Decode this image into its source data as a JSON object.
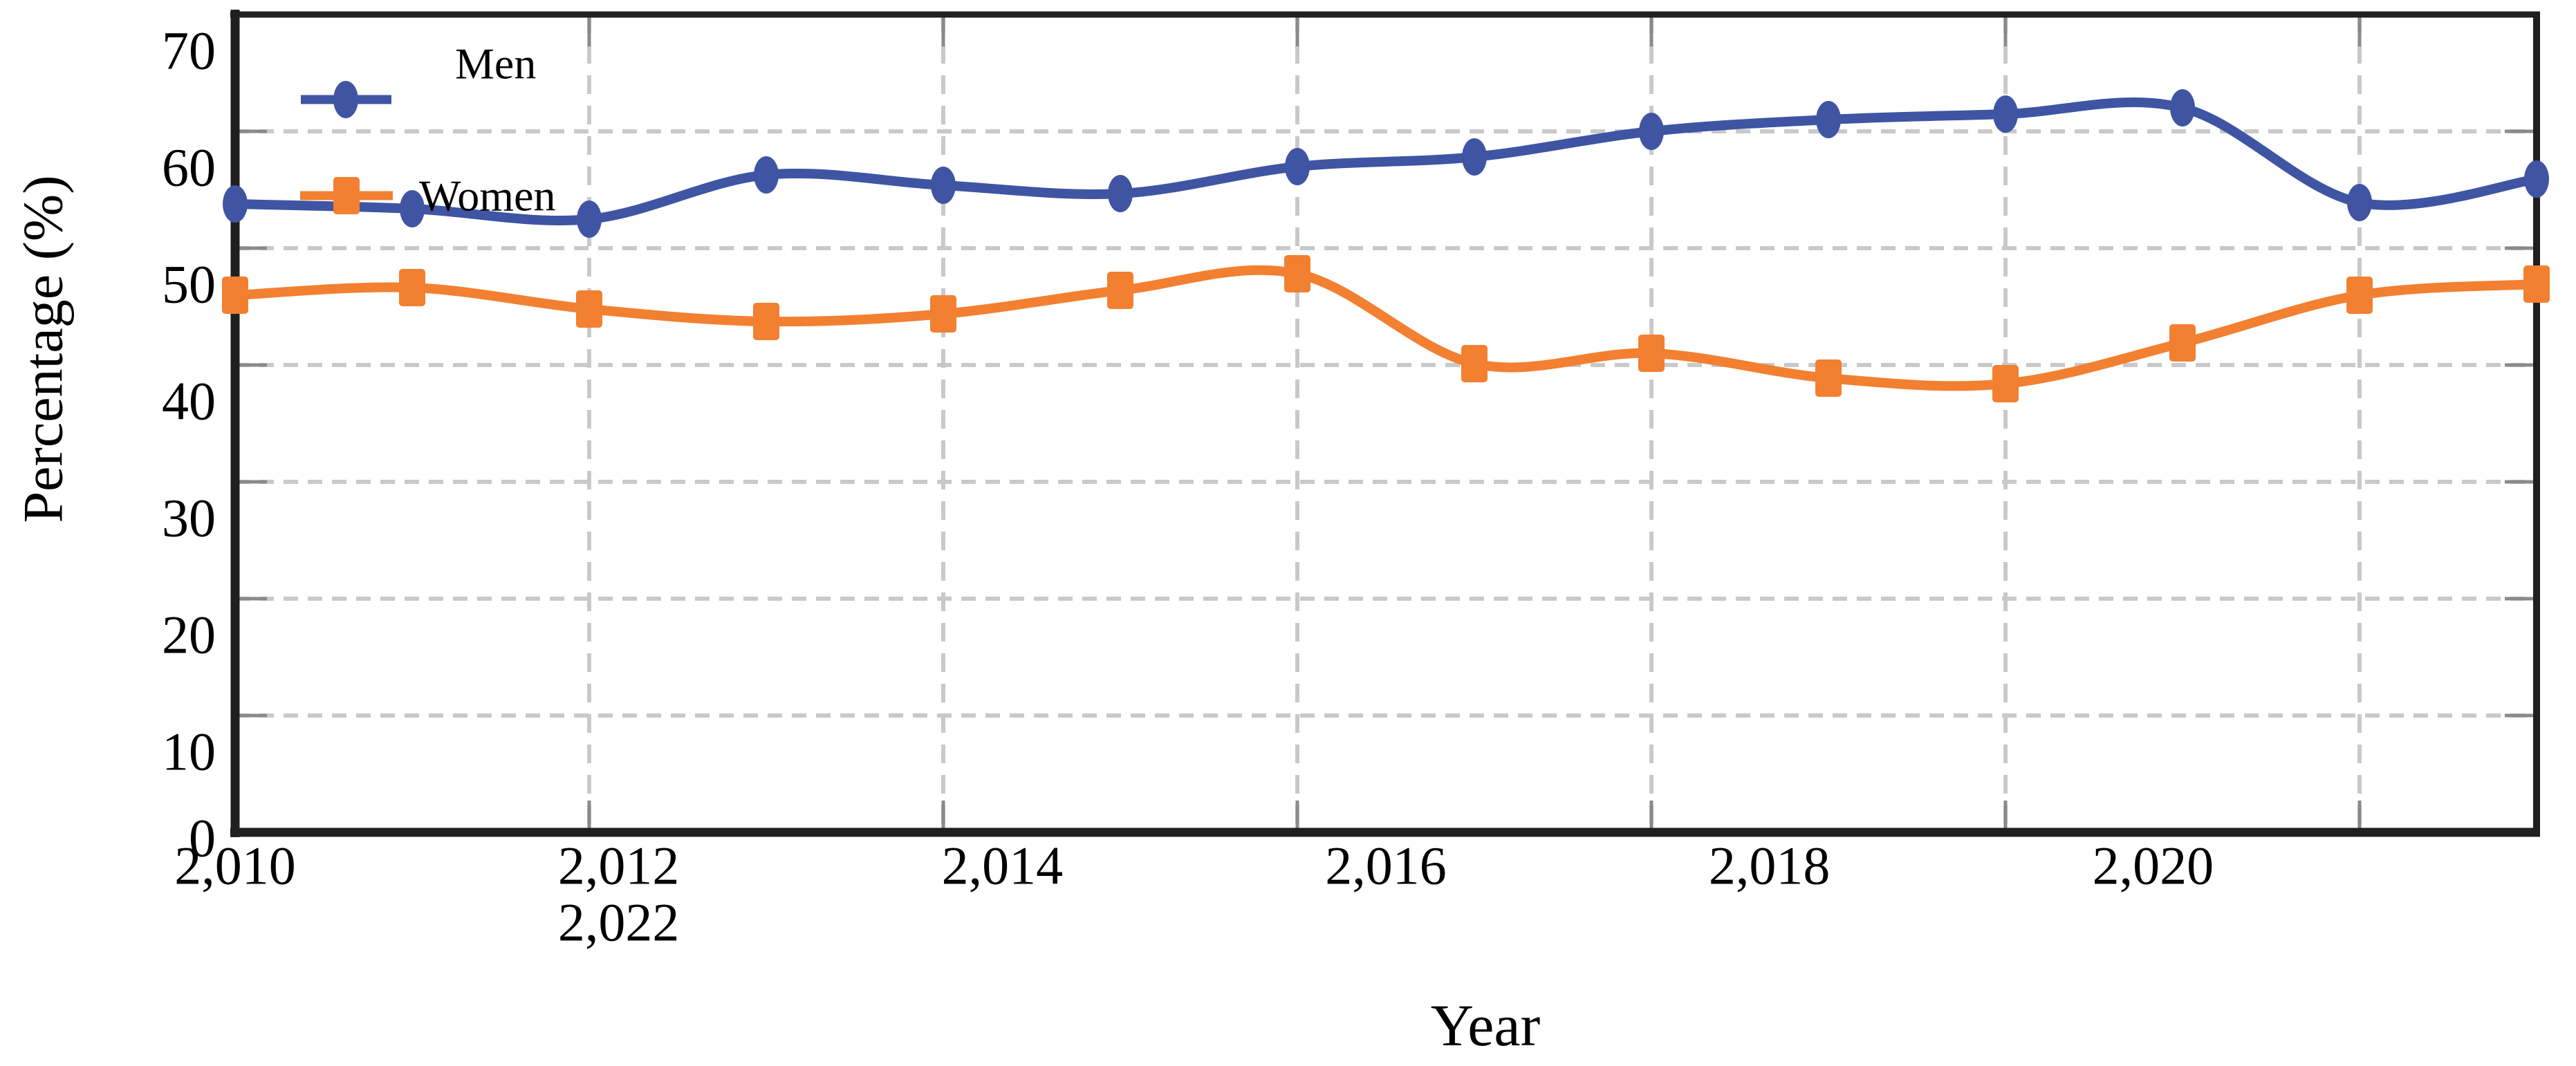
{
  "figure": {
    "background": "#ffffff"
  },
  "chart_data": {
    "type": "line",
    "title": "",
    "xlabel": "Year",
    "ylabel": "Percentage (%)",
    "x": [
      2010,
      2011,
      2012,
      2013,
      2014,
      2015,
      2016,
      2017,
      2018,
      2019,
      2020,
      2021,
      2022,
      2023
    ],
    "series": [
      {
        "name": "Men",
        "marker": "ellipse",
        "color": "#3F55A3",
        "values": [
          53.8,
          53.4,
          52.5,
          56.3,
          55.4,
          54.7,
          57.0,
          57.8,
          60.0,
          61.0,
          61.5,
          62.0,
          53.9,
          55.9
        ]
      },
      {
        "name": "Women",
        "marker": "square",
        "color": "#F28030",
        "values": [
          46.0,
          46.6,
          44.8,
          43.7,
          44.4,
          46.4,
          47.8,
          40.1,
          41.0,
          38.9,
          38.4,
          41.9,
          46.0,
          46.9
        ]
      }
    ],
    "xlim": [
      2010,
      2023
    ],
    "ylim": [
      0,
      70
    ],
    "yticks": [
      0,
      10,
      20,
      30,
      40,
      50,
      60,
      70
    ],
    "ytick_labels": [
      "0",
      "10",
      "20",
      "30",
      "40",
      "50",
      "60",
      "70"
    ],
    "xticks": [
      2010,
      2012,
      2014,
      2016,
      2018,
      2020
    ],
    "xtick_labels": [
      "2,010",
      "2,012",
      "2,014",
      "2,016",
      "2,018",
      "2,020"
    ],
    "overflow_xtick_label": "2,022",
    "grid": "dashed",
    "legend": {
      "position": "top-left-inside",
      "entries": [
        "Men",
        "Women"
      ]
    }
  },
  "colors": {
    "axis": "#1f1f1f",
    "gridline": "#c9c9c9",
    "tick_mark": "#8a8a8a",
    "text": "#000000",
    "men": "#3F55A3",
    "women": "#F28030",
    "background": "#ffffff"
  }
}
